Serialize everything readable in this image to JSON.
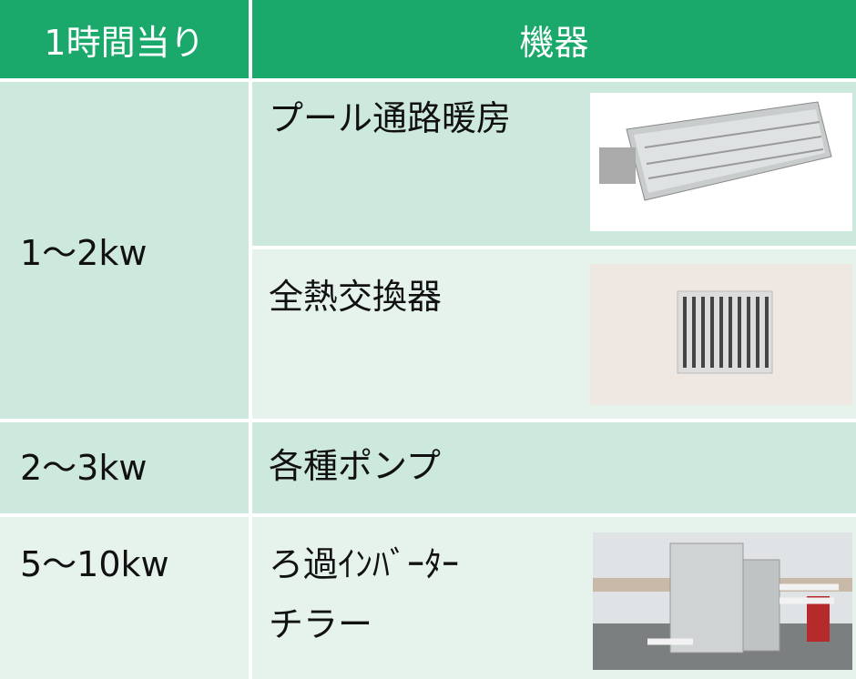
{
  "table": {
    "header": [
      "1時間当り",
      "機器"
    ],
    "rows": [
      {
        "power": "1～2kw",
        "devices": [
          [
            "プール通路暖房"
          ],
          [
            "全熱交換器"
          ]
        ]
      },
      {
        "power": "2～3kw",
        "devices": [
          [
            "各種ポンプ"
          ]
        ]
      },
      {
        "power": "5～10kw",
        "devices": [
          [
            "ろ過ｲﾝﾊﾞｰﾀｰ",
            "チラー"
          ]
        ]
      }
    ]
  }
}
